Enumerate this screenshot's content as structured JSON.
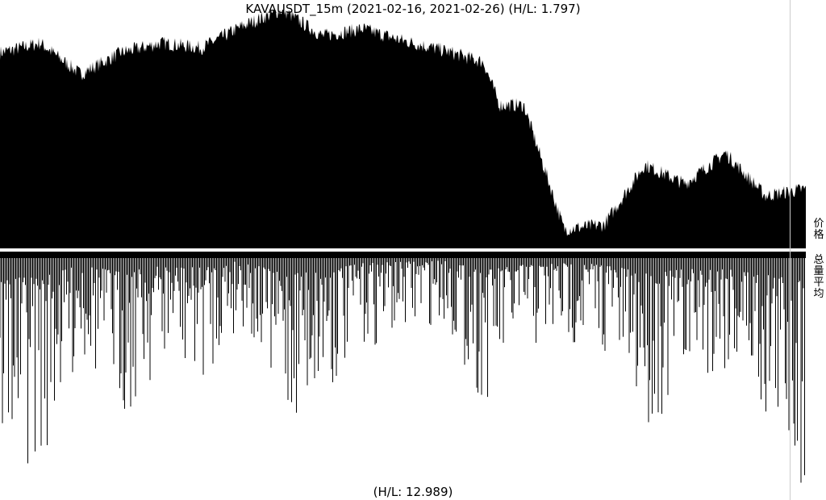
{
  "title": "KAVAUSDT_15m (2021-02-16, 2021-02-26) (H/L: 1.797)",
  "footer": "(H/L: 12.989)",
  "labels": {
    "price": "价格",
    "volume": "总量平均"
  },
  "colors": {
    "fill": "#000000",
    "background": "#ffffff",
    "divider": "#cccccc"
  },
  "chart_data": [
    {
      "type": "area",
      "title": "KAVAUSDT_15m (2021-02-16, 2021-02-26) (H/L: 1.797)",
      "xlabel": "",
      "ylabel": "价格",
      "x_range": [
        "2021-02-16",
        "2021-02-26"
      ],
      "hl_ratio": 1.797,
      "grid": false,
      "series": [
        {
          "x": [
            0,
            0.05,
            0.1,
            0.15,
            0.2,
            0.25,
            0.3,
            0.35,
            0.4,
            0.45,
            0.5,
            0.55,
            0.6,
            0.62,
            0.65,
            0.7,
            0.75,
            0.8,
            0.85,
            0.9,
            0.95,
            1.0
          ],
          "values": [
            0.82,
            0.86,
            0.73,
            0.82,
            0.86,
            0.84,
            0.93,
            1.0,
            0.89,
            0.92,
            0.87,
            0.83,
            0.78,
            0.6,
            0.6,
            0.08,
            0.1,
            0.35,
            0.27,
            0.4,
            0.22,
            0.25
          ]
        }
      ]
    },
    {
      "type": "bar",
      "title": "",
      "xlabel": "",
      "ylabel": "总量平均",
      "hl_ratio": 12.989,
      "orientation": "downward",
      "grid": false,
      "series": [
        {
          "x": [
            0.05,
            0.1,
            0.15,
            0.2,
            0.25,
            0.3,
            0.35,
            0.4,
            0.45,
            0.5,
            0.55,
            0.6,
            0.65,
            0.7,
            0.75,
            0.8,
            0.85,
            0.9,
            0.95,
            0.995
          ],
          "values": [
            0.9,
            0.45,
            0.7,
            0.5,
            0.55,
            0.3,
            0.75,
            0.65,
            0.4,
            0.35,
            0.3,
            0.65,
            0.45,
            0.4,
            0.42,
            0.75,
            0.6,
            0.5,
            0.75,
            1.0
          ]
        }
      ]
    }
  ]
}
